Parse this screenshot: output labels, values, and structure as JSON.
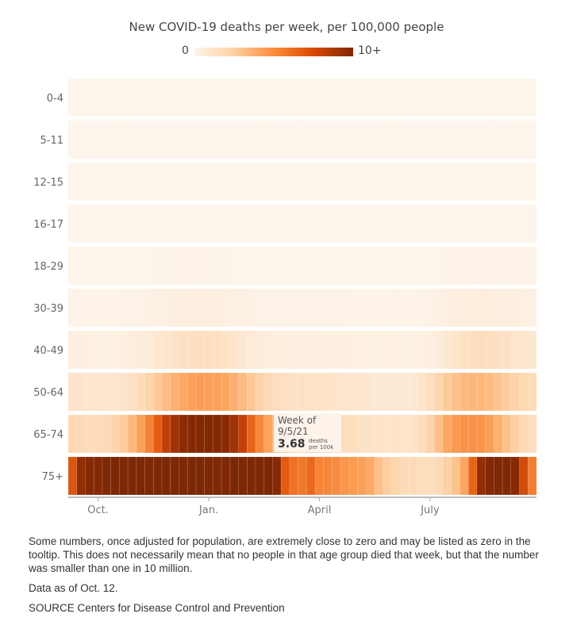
{
  "chart_data": {
    "type": "heatmap",
    "title": "New COVID-19 deaths per week, per 100,000 people",
    "legend": {
      "min_label": "0",
      "max_label": "10+",
      "min": 0,
      "max": 10,
      "placement": "top-center"
    },
    "colors": {
      "low": "#fdf2e7",
      "mid1": "#fdd0a2",
      "mid2": "#fd8d3c",
      "mid3": "#e05a0c",
      "high": "#7f2704"
    },
    "x_ticks": [
      "Oct.",
      "Jan.",
      "April",
      "July"
    ],
    "x_tick_weeks": [
      4,
      17,
      30,
      43
    ],
    "weeks": 55,
    "rows": [
      {
        "label": "0-4",
        "values": [
          0.02,
          0.02,
          0.02,
          0.02,
          0.02,
          0.02,
          0.02,
          0.02,
          0.02,
          0.02,
          0.02,
          0.02,
          0.02,
          0.02,
          0.02,
          0.02,
          0.02,
          0.02,
          0.02,
          0.02,
          0.02,
          0.02,
          0.02,
          0.02,
          0.02,
          0.02,
          0.02,
          0.02,
          0.02,
          0.02,
          0.02,
          0.02,
          0.02,
          0.02,
          0.02,
          0.02,
          0.02,
          0.02,
          0.02,
          0.02,
          0.02,
          0.02,
          0.02,
          0.02,
          0.02,
          0.02,
          0.02,
          0.02,
          0.02,
          0.02,
          0.02,
          0.02,
          0.02,
          0.02,
          0.02
        ]
      },
      {
        "label": "5-11",
        "values": [
          0.01,
          0.01,
          0.01,
          0.01,
          0.01,
          0.01,
          0.01,
          0.01,
          0.01,
          0.01,
          0.01,
          0.01,
          0.01,
          0.01,
          0.01,
          0.01,
          0.01,
          0.01,
          0.01,
          0.01,
          0.01,
          0.01,
          0.01,
          0.01,
          0.01,
          0.01,
          0.01,
          0.01,
          0.01,
          0.01,
          0.01,
          0.01,
          0.01,
          0.01,
          0.01,
          0.01,
          0.01,
          0.01,
          0.01,
          0.01,
          0.01,
          0.01,
          0.01,
          0.01,
          0.01,
          0.01,
          0.01,
          0.01,
          0.01,
          0.01,
          0.01,
          0.01,
          0.01,
          0.01,
          0.01
        ]
      },
      {
        "label": "12-15",
        "values": [
          0.02,
          0.02,
          0.02,
          0.02,
          0.02,
          0.02,
          0.02,
          0.02,
          0.02,
          0.02,
          0.02,
          0.02,
          0.02,
          0.02,
          0.02,
          0.02,
          0.02,
          0.02,
          0.02,
          0.02,
          0.02,
          0.02,
          0.02,
          0.02,
          0.02,
          0.02,
          0.02,
          0.02,
          0.02,
          0.02,
          0.02,
          0.02,
          0.02,
          0.02,
          0.02,
          0.02,
          0.02,
          0.02,
          0.02,
          0.02,
          0.02,
          0.02,
          0.02,
          0.02,
          0.02,
          0.02,
          0.02,
          0.02,
          0.02,
          0.02,
          0.02,
          0.02,
          0.02,
          0.02,
          0.02
        ]
      },
      {
        "label": "16-17",
        "values": [
          0.03,
          0.03,
          0.03,
          0.03,
          0.03,
          0.03,
          0.03,
          0.03,
          0.03,
          0.03,
          0.04,
          0.04,
          0.04,
          0.04,
          0.04,
          0.04,
          0.04,
          0.04,
          0.03,
          0.03,
          0.03,
          0.03,
          0.03,
          0.03,
          0.03,
          0.03,
          0.03,
          0.03,
          0.03,
          0.03,
          0.03,
          0.03,
          0.03,
          0.03,
          0.03,
          0.03,
          0.03,
          0.03,
          0.03,
          0.03,
          0.03,
          0.03,
          0.03,
          0.03,
          0.03,
          0.04,
          0.04,
          0.04,
          0.04,
          0.04,
          0.04,
          0.03,
          0.03,
          0.03,
          0.03
        ]
      },
      {
        "label": "18-29",
        "values": [
          0.06,
          0.05,
          0.05,
          0.05,
          0.05,
          0.05,
          0.05,
          0.06,
          0.06,
          0.07,
          0.08,
          0.08,
          0.09,
          0.09,
          0.09,
          0.09,
          0.09,
          0.08,
          0.08,
          0.07,
          0.06,
          0.06,
          0.05,
          0.05,
          0.05,
          0.05,
          0.05,
          0.05,
          0.05,
          0.05,
          0.05,
          0.05,
          0.05,
          0.05,
          0.05,
          0.05,
          0.05,
          0.05,
          0.05,
          0.05,
          0.05,
          0.05,
          0.06,
          0.07,
          0.09,
          0.11,
          0.13,
          0.14,
          0.14,
          0.13,
          0.12,
          0.11,
          0.1,
          0.09,
          0.09
        ]
      },
      {
        "label": "30-39",
        "values": [
          0.15,
          0.13,
          0.12,
          0.12,
          0.12,
          0.13,
          0.14,
          0.16,
          0.18,
          0.22,
          0.26,
          0.3,
          0.34,
          0.36,
          0.38,
          0.39,
          0.38,
          0.36,
          0.33,
          0.3,
          0.26,
          0.22,
          0.19,
          0.17,
          0.16,
          0.15,
          0.15,
          0.15,
          0.15,
          0.15,
          0.15,
          0.14,
          0.14,
          0.13,
          0.13,
          0.13,
          0.12,
          0.12,
          0.12,
          0.12,
          0.13,
          0.15,
          0.19,
          0.24,
          0.31,
          0.38,
          0.42,
          0.44,
          0.44,
          0.42,
          0.4,
          0.37,
          0.34,
          0.31,
          0.3
        ]
      },
      {
        "label": "40-49",
        "values": [
          0.38,
          0.34,
          0.32,
          0.31,
          0.31,
          0.33,
          0.36,
          0.42,
          0.5,
          0.6,
          0.72,
          0.84,
          0.95,
          1.04,
          1.1,
          1.12,
          1.1,
          1.04,
          0.96,
          0.86,
          0.74,
          0.62,
          0.52,
          0.45,
          0.41,
          0.39,
          0.38,
          0.38,
          0.38,
          0.37,
          0.36,
          0.35,
          0.34,
          0.33,
          0.32,
          0.31,
          0.3,
          0.29,
          0.28,
          0.28,
          0.29,
          0.33,
          0.4,
          0.52,
          0.7,
          0.88,
          1.02,
          1.12,
          1.18,
          1.14,
          1.08,
          0.98,
          0.88,
          0.8,
          0.74
        ]
      },
      {
        "label": "50-64",
        "values": [
          0.9,
          0.82,
          0.78,
          0.76,
          0.78,
          0.82,
          0.9,
          1.05,
          1.28,
          1.58,
          1.95,
          2.35,
          2.75,
          3.1,
          3.35,
          3.5,
          3.48,
          3.35,
          3.12,
          2.8,
          2.4,
          1.98,
          1.62,
          1.35,
          1.18,
          1.08,
          1.02,
          0.98,
          0.96,
          0.94,
          0.92,
          0.88,
          0.84,
          0.8,
          0.76,
          0.72,
          0.68,
          0.66,
          0.64,
          0.66,
          0.72,
          0.88,
          1.12,
          1.48,
          1.9,
          2.25,
          2.48,
          2.6,
          2.55,
          2.38,
          2.12,
          1.85,
          1.58,
          1.38,
          1.25
        ]
      },
      {
        "label": "65-74",
        "values": [
          1.4,
          1.3,
          1.25,
          1.25,
          1.35,
          1.55,
          1.9,
          2.5,
          3.4,
          4.6,
          6.1,
          7.4,
          8.4,
          9.1,
          9.5,
          9.7,
          9.7,
          9.5,
          9.1,
          8.4,
          7.4,
          5.8,
          4.4,
          3.2,
          2.5,
          2.0,
          1.8,
          1.7,
          1.6,
          1.5,
          1.4,
          1.3,
          1.2,
          1.1,
          1.0,
          0.95,
          0.9,
          0.88,
          0.85,
          0.88,
          0.95,
          1.2,
          1.6,
          2.3,
          3.1,
          3.68,
          3.9,
          3.95,
          3.8,
          3.4,
          2.8,
          2.2,
          1.7,
          1.4,
          1.2
        ]
      },
      {
        "label": "75+",
        "values": [
          6.4,
          8.8,
          9.5,
          9.7,
          9.8,
          10.0,
          10.0,
          10.0,
          10.0,
          10.0,
          10.0,
          10.0,
          10.0,
          10.0,
          10.0,
          10.0,
          10.0,
          10.0,
          10.0,
          10.0,
          10.0,
          10.0,
          10.0,
          10.0,
          9.3,
          6.2,
          5.2,
          5.0,
          5.6,
          4.5,
          4.4,
          4.2,
          3.8,
          3.6,
          3.4,
          3.0,
          2.2,
          1.7,
          1.5,
          1.3,
          1.3,
          1.2,
          1.2,
          1.3,
          1.7,
          2.1,
          3.2,
          5.8,
          8.8,
          9.6,
          9.8,
          9.8,
          9.3,
          6.8,
          4.8
        ]
      }
    ],
    "tooltip": {
      "week_label": "Week of",
      "date": "9/5/21",
      "value": "3.68",
      "unit_line1": "deaths",
      "unit_line2": "per 100k",
      "row": "65-74"
    }
  },
  "notes": {
    "disclaimer": "Some numbers, once adjusted for population, are extremely close to zero and may be listed as zero in the tooltip. This does not necessarily mean that no people in that age group died that week, but that the number was smaller than one in 10 million.",
    "data_as_of": "Data as of Oct. 12.",
    "source": "SOURCE Centers for Disease Control and Prevention"
  }
}
